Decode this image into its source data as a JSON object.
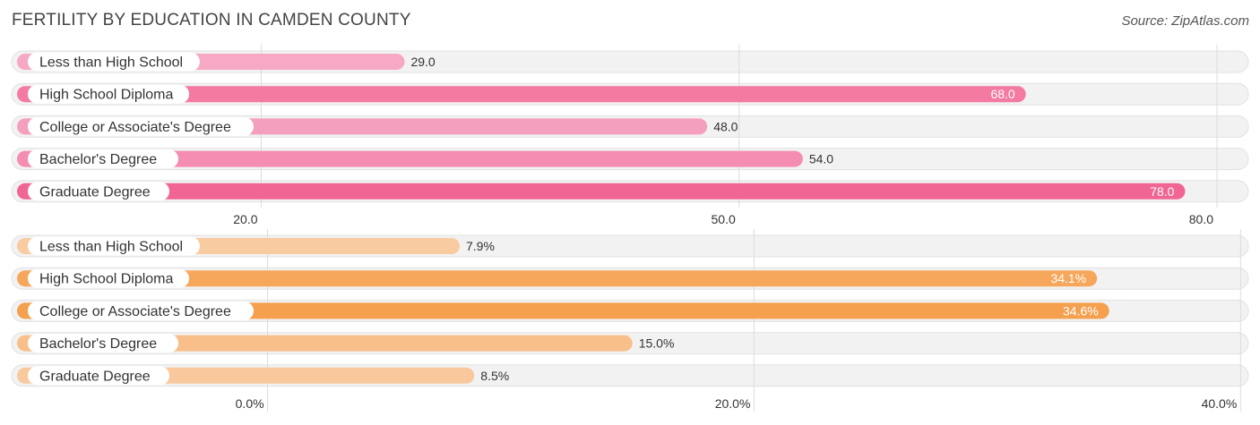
{
  "header": {
    "title": "FERTILITY BY EDUCATION IN CAMDEN COUNTY",
    "source": "Source: ZipAtlas.com"
  },
  "chart_data": [
    {
      "type": "bar",
      "orientation": "horizontal",
      "categories": [
        "Less than High School",
        "High School Diploma",
        "College or Associate's Degree",
        "Bachelor's Degree",
        "Graduate Degree"
      ],
      "values": [
        29.0,
        68.0,
        48.0,
        54.0,
        78.0
      ],
      "value_labels": [
        "29.0",
        "68.0",
        "48.0",
        "54.0",
        "78.0"
      ],
      "ticks": [
        20.0,
        50.0,
        80.0
      ],
      "tick_labels": [
        "20.0",
        "50.0",
        "80.0"
      ],
      "xlim": [
        3.6,
        82.7
      ],
      "grid": true,
      "colors": [
        "#f7a8c4",
        "#f47aa2",
        "#f59fbe",
        "#f48db1",
        "#f06593"
      ]
    },
    {
      "type": "bar",
      "orientation": "horizontal",
      "categories": [
        "Less than High School",
        "High School Diploma",
        "College or Associate's Degree",
        "Bachelor's Degree",
        "Graduate Degree"
      ],
      "values": [
        7.9,
        34.1,
        34.6,
        15.0,
        8.5
      ],
      "value_labels": [
        "7.9%",
        "34.1%",
        "34.6%",
        "15.0%",
        "8.5%"
      ],
      "ticks": [
        0.0,
        20.0,
        40.0
      ],
      "tick_labels": [
        "0.0%",
        "20.0%",
        "40.0%"
      ],
      "xlim": [
        -11.0,
        40.8
      ],
      "grid": true,
      "colors": [
        "#f9cba0",
        "#f6a75c",
        "#f5a04f",
        "#f8bf8a",
        "#f9c99d"
      ]
    }
  ]
}
